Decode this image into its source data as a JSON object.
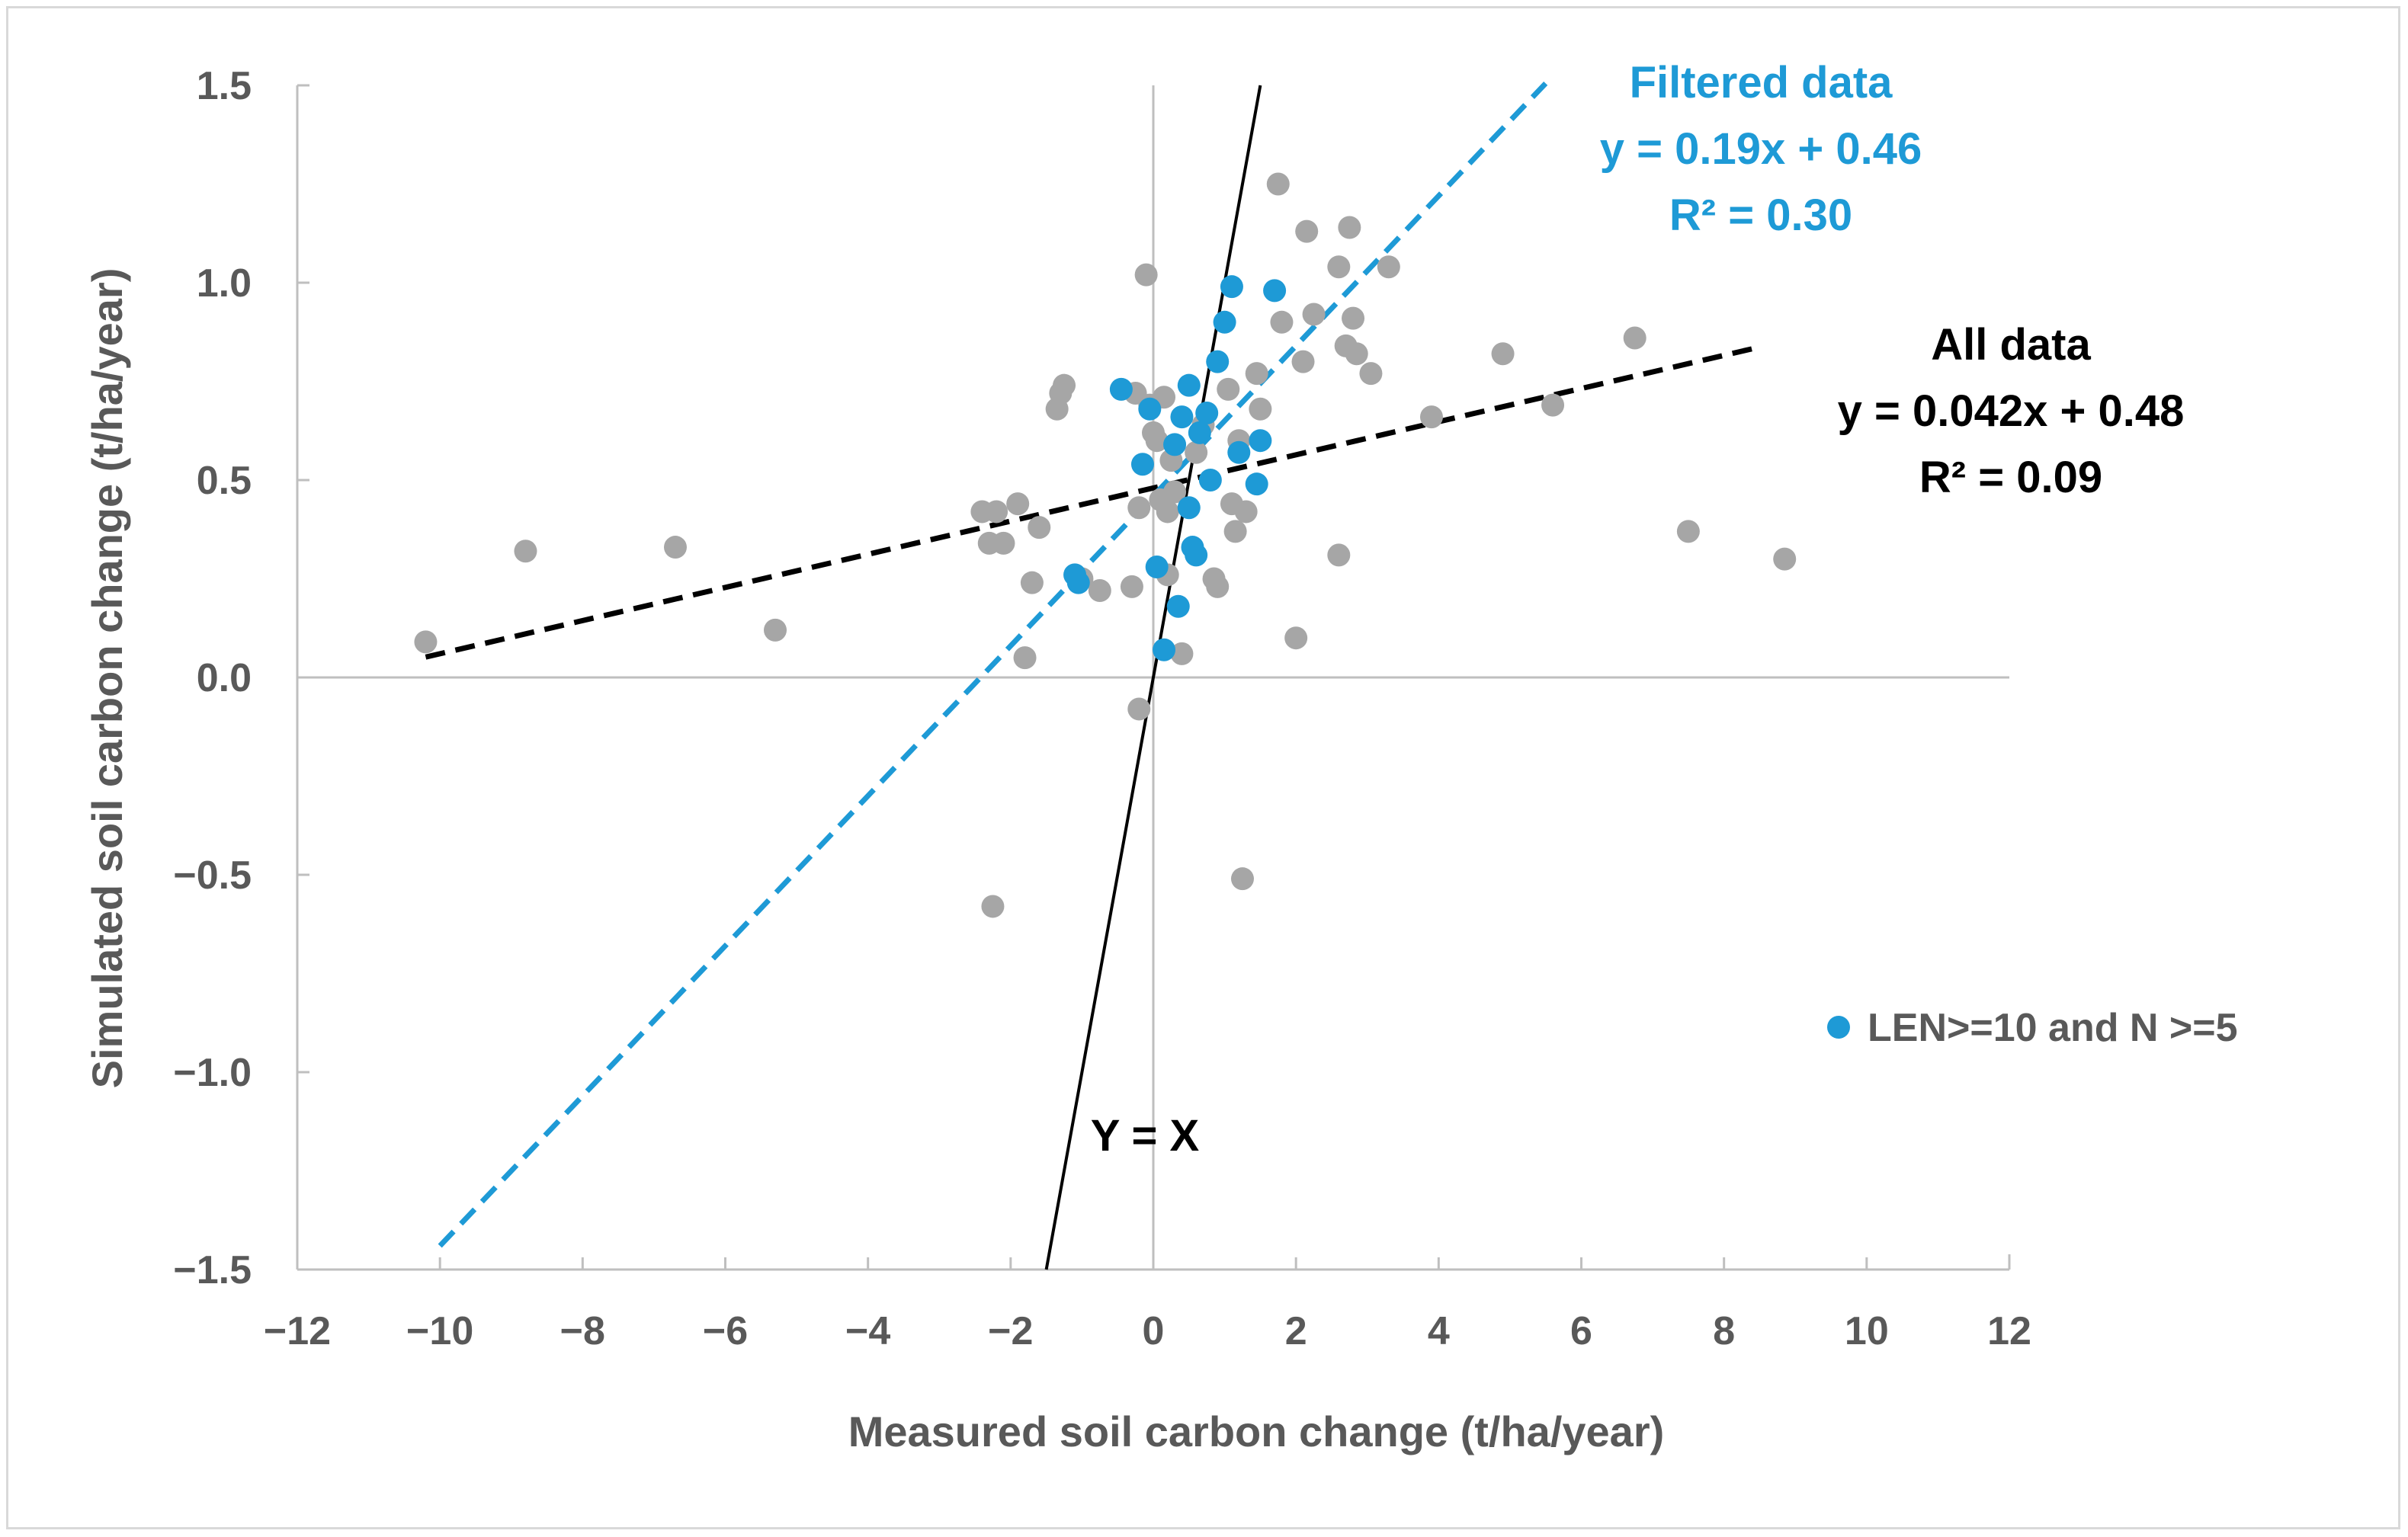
{
  "chart_data": {
    "type": "scatter",
    "title": "",
    "xlabel": "Measured soil carbon change (t/ha/year)",
    "ylabel": "Simulated soil carbon change (t/ha/year)",
    "xlim": [
      -12,
      12
    ],
    "ylim": [
      -1.5,
      1.5
    ],
    "x_ticks": [
      -12,
      -10,
      -8,
      -6,
      -4,
      -2,
      0,
      2,
      4,
      6,
      8,
      10,
      12
    ],
    "x_tick_labels": [
      "−12",
      "−10",
      "−8",
      "−6",
      "−4",
      "−2",
      "0",
      "2",
      "4",
      "6",
      "8",
      "10",
      "12"
    ],
    "y_ticks": [
      -1.5,
      -1.0,
      -0.5,
      0.0,
      0.5,
      1.0,
      1.5
    ],
    "y_tick_labels": [
      "−1.5",
      "−1.0",
      "−0.5",
      "0.0",
      "0.5",
      "1.0",
      "1.5"
    ],
    "grid": false,
    "legend_position": "right",
    "series": [
      {
        "color": "#a6a6a6",
        "points": [
          [
            -10.2,
            0.09
          ],
          [
            -8.8,
            0.32
          ],
          [
            -6.7,
            0.33
          ],
          [
            -5.3,
            0.12
          ],
          [
            -2.4,
            0.42
          ],
          [
            -2.3,
            0.34
          ],
          [
            -2.1,
            0.34
          ],
          [
            -2.2,
            0.42
          ],
          [
            -1.9,
            0.44
          ],
          [
            -1.6,
            0.38
          ],
          [
            -1.7,
            0.24
          ],
          [
            -1.8,
            0.05
          ],
          [
            -1.35,
            0.68
          ],
          [
            -1.3,
            0.72
          ],
          [
            -1.25,
            0.74
          ],
          [
            -1.0,
            0.25
          ],
          [
            -0.75,
            0.22
          ],
          [
            -0.3,
            0.23
          ],
          [
            -0.25,
            0.72
          ],
          [
            -0.2,
            0.43
          ],
          [
            -0.05,
            0.69
          ],
          [
            0.0,
            0.62
          ],
          [
            0.05,
            0.6
          ],
          [
            0.1,
            0.45
          ],
          [
            0.15,
            0.71
          ],
          [
            0.2,
            0.42
          ],
          [
            0.25,
            0.55
          ],
          [
            0.3,
            0.47
          ],
          [
            -0.1,
            1.02
          ],
          [
            0.2,
            0.26
          ],
          [
            0.4,
            0.06
          ],
          [
            -0.2,
            -0.08
          ],
          [
            0.6,
            0.57
          ],
          [
            0.7,
            0.64
          ],
          [
            0.85,
            0.25
          ],
          [
            0.9,
            0.23
          ],
          [
            1.05,
            0.73
          ],
          [
            1.1,
            0.44
          ],
          [
            1.15,
            0.37
          ],
          [
            1.2,
            0.6
          ],
          [
            1.3,
            0.42
          ],
          [
            1.45,
            0.77
          ],
          [
            1.5,
            0.68
          ],
          [
            1.75,
            1.25
          ],
          [
            1.8,
            0.9
          ],
          [
            2.1,
            0.8
          ],
          [
            2.15,
            1.13
          ],
          [
            2.25,
            0.92
          ],
          [
            2.6,
            1.04
          ],
          [
            2.7,
            0.84
          ],
          [
            2.75,
            1.14
          ],
          [
            2.8,
            0.91
          ],
          [
            2.85,
            0.82
          ],
          [
            3.05,
            0.77
          ],
          [
            3.3,
            1.04
          ],
          [
            3.9,
            0.66
          ],
          [
            4.9,
            0.82
          ],
          [
            5.6,
            0.69
          ],
          [
            6.75,
            0.86
          ],
          [
            7.5,
            0.37
          ],
          [
            8.85,
            0.3
          ],
          [
            2.0,
            0.1
          ],
          [
            2.6,
            0.31
          ],
          [
            1.25,
            -0.51
          ],
          [
            -2.25,
            -0.58
          ]
        ]
      },
      {
        "name": "LEN>=10 and N >=5",
        "color": "#1e9ad6",
        "points": [
          [
            -1.1,
            0.26
          ],
          [
            -1.05,
            0.24
          ],
          [
            -0.45,
            0.73
          ],
          [
            -0.15,
            0.54
          ],
          [
            -0.05,
            0.68
          ],
          [
            0.05,
            0.28
          ],
          [
            0.15,
            0.07
          ],
          [
            0.3,
            0.59
          ],
          [
            0.35,
            0.18
          ],
          [
            0.4,
            0.66
          ],
          [
            0.5,
            0.74
          ],
          [
            0.5,
            0.43
          ],
          [
            0.55,
            0.33
          ],
          [
            0.6,
            0.31
          ],
          [
            0.65,
            0.62
          ],
          [
            0.75,
            0.67
          ],
          [
            0.8,
            0.5
          ],
          [
            0.9,
            0.8
          ],
          [
            1.0,
            0.9
          ],
          [
            1.1,
            0.99
          ],
          [
            1.2,
            0.57
          ],
          [
            1.45,
            0.49
          ],
          [
            1.5,
            0.6
          ],
          [
            1.7,
            0.98
          ]
        ]
      }
    ],
    "trendlines": [
      {
        "name": "All data",
        "equation": "y = 0.042x + 0.48",
        "r2": "R² = 0.09",
        "slope": 0.042,
        "intercept": 0.48,
        "x_range": [
          -10.2,
          8.5
        ],
        "color": "#000000",
        "style": "dashed"
      },
      {
        "name": "Filtered data",
        "equation": "y = 0.19x + 0.46",
        "r2": "R² = 0.30",
        "slope": 0.19,
        "intercept": 0.46,
        "x_range": [
          -10.0,
          5.5
        ],
        "color": "#1e9ad6",
        "style": "dashed"
      },
      {
        "name": "Y = X",
        "equation": "",
        "r2": "",
        "slope": 1,
        "intercept": 0,
        "x_range": [
          -1.5,
          1.5
        ],
        "color": "#000000",
        "style": "solid"
      }
    ]
  }
}
